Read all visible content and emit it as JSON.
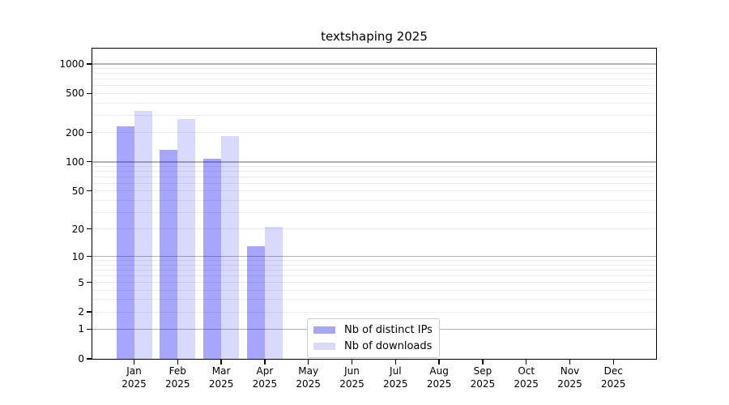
{
  "chart_data": {
    "type": "bar",
    "title": "textshaping 2025",
    "categories": [
      "Jan",
      "Feb",
      "Mar",
      "Apr",
      "May",
      "Jun",
      "Jul",
      "Aug",
      "Sep",
      "Oct",
      "Nov",
      "Dec"
    ],
    "category_year": "2025",
    "series": [
      {
        "name": "Nb of distinct IPs",
        "color": "rgba(0,0,255,0.35)",
        "color_on_white": "#a6a6ff",
        "values": [
          230,
          133,
          107,
          13,
          0,
          0,
          0,
          0,
          0,
          0,
          0,
          0
        ]
      },
      {
        "name": "Nb of downloads",
        "color": "rgba(0,0,255,0.15)",
        "color_on_white": "#d9d9ff",
        "values": [
          330,
          273,
          185,
          21,
          0,
          0,
          0,
          0,
          0,
          0,
          0,
          0
        ]
      }
    ],
    "y_scale": "log1p",
    "y_ticks": [
      0,
      1,
      2,
      5,
      10,
      20,
      50,
      100,
      200,
      500,
      1000
    ],
    "ylim": [
      0,
      1435
    ],
    "xlabel": "",
    "ylabel": "",
    "grid": {
      "vertical": false,
      "major_at": [
        1,
        10,
        100,
        1000
      ],
      "minor_at": [
        2,
        3,
        4,
        5,
        6,
        7,
        8,
        9,
        20,
        30,
        40,
        50,
        60,
        70,
        80,
        90,
        200,
        300,
        400,
        500,
        600,
        700,
        800,
        900
      ],
      "major_color": "#b3b3b3",
      "minor_color": "#ececec"
    },
    "legend": {
      "position": "bottom-center-left",
      "labels": [
        "Nb of distinct IPs",
        "Nb of downloads"
      ]
    }
  }
}
